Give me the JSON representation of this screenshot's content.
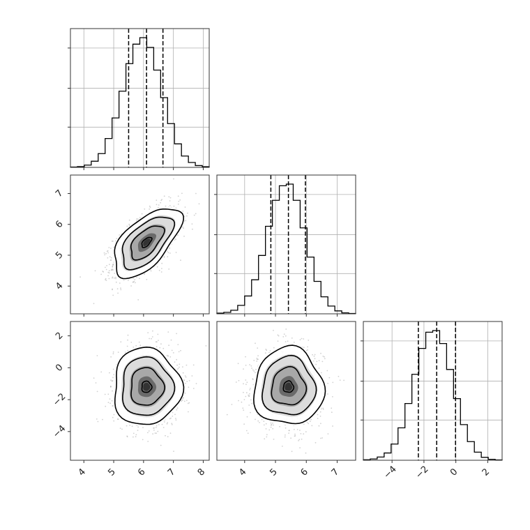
{
  "chart_data": {
    "type": "corner",
    "title": "",
    "grid": true,
    "colors": {
      "line": "#000000",
      "scatter": "#9a9a9a",
      "grid": "#b0b0b0"
    },
    "parameters": [
      {
        "mean": 6.1,
        "sd": 0.55,
        "ticks": [
          4,
          5,
          6,
          7,
          8
        ],
        "tick_labels": [
          "4",
          "5",
          "6",
          "7",
          "8"
        ],
        "range": [
          3.55,
          8.2
        ],
        "quantiles": [
          5.5,
          6.1,
          6.65
        ]
      },
      {
        "mean": 5.42,
        "sd": 0.55,
        "ticks": [
          4,
          5,
          6,
          7
        ],
        "tick_labels": [
          "4",
          "5",
          "6",
          "7"
        ],
        "range": [
          3.1,
          7.6
        ],
        "quantiles": [
          4.85,
          5.42,
          5.97
        ]
      },
      {
        "mean": -1.2,
        "sd": 1.18,
        "ticks": [
          -4,
          -2,
          0,
          2
        ],
        "tick_labels": [
          "−4",
          "−2",
          "0",
          "2"
        ],
        "range": [
          -5.8,
          2.9
        ],
        "quantiles": [
          -2.35,
          -1.2,
          -0.02
        ]
      }
    ],
    "correlations": [
      [
        1,
        0.6,
        0.0
      ],
      [
        0.6,
        1,
        0.0
      ],
      [
        0.0,
        0.0,
        1
      ]
    ],
    "histograms": [
      {
        "param": 0,
        "bins": 20,
        "counts": [
          2,
          5,
          14,
          38,
          85,
          178,
          305,
          470,
          640,
          760,
          800,
          740,
          600,
          430,
          270,
          145,
          70,
          30,
          11,
          4
        ]
      },
      {
        "param": 1,
        "bins": 20,
        "counts": [
          4,
          9,
          22,
          52,
          110,
          210,
          360,
          540,
          700,
          790,
          800,
          700,
          530,
          350,
          200,
          105,
          48,
          18,
          6,
          2
        ]
      },
      {
        "param": 2,
        "bins": 20,
        "counts": [
          3,
          8,
          20,
          45,
          100,
          200,
          350,
          530,
          690,
          790,
          800,
          720,
          560,
          380,
          220,
          115,
          50,
          18,
          6,
          2
        ]
      }
    ]
  }
}
